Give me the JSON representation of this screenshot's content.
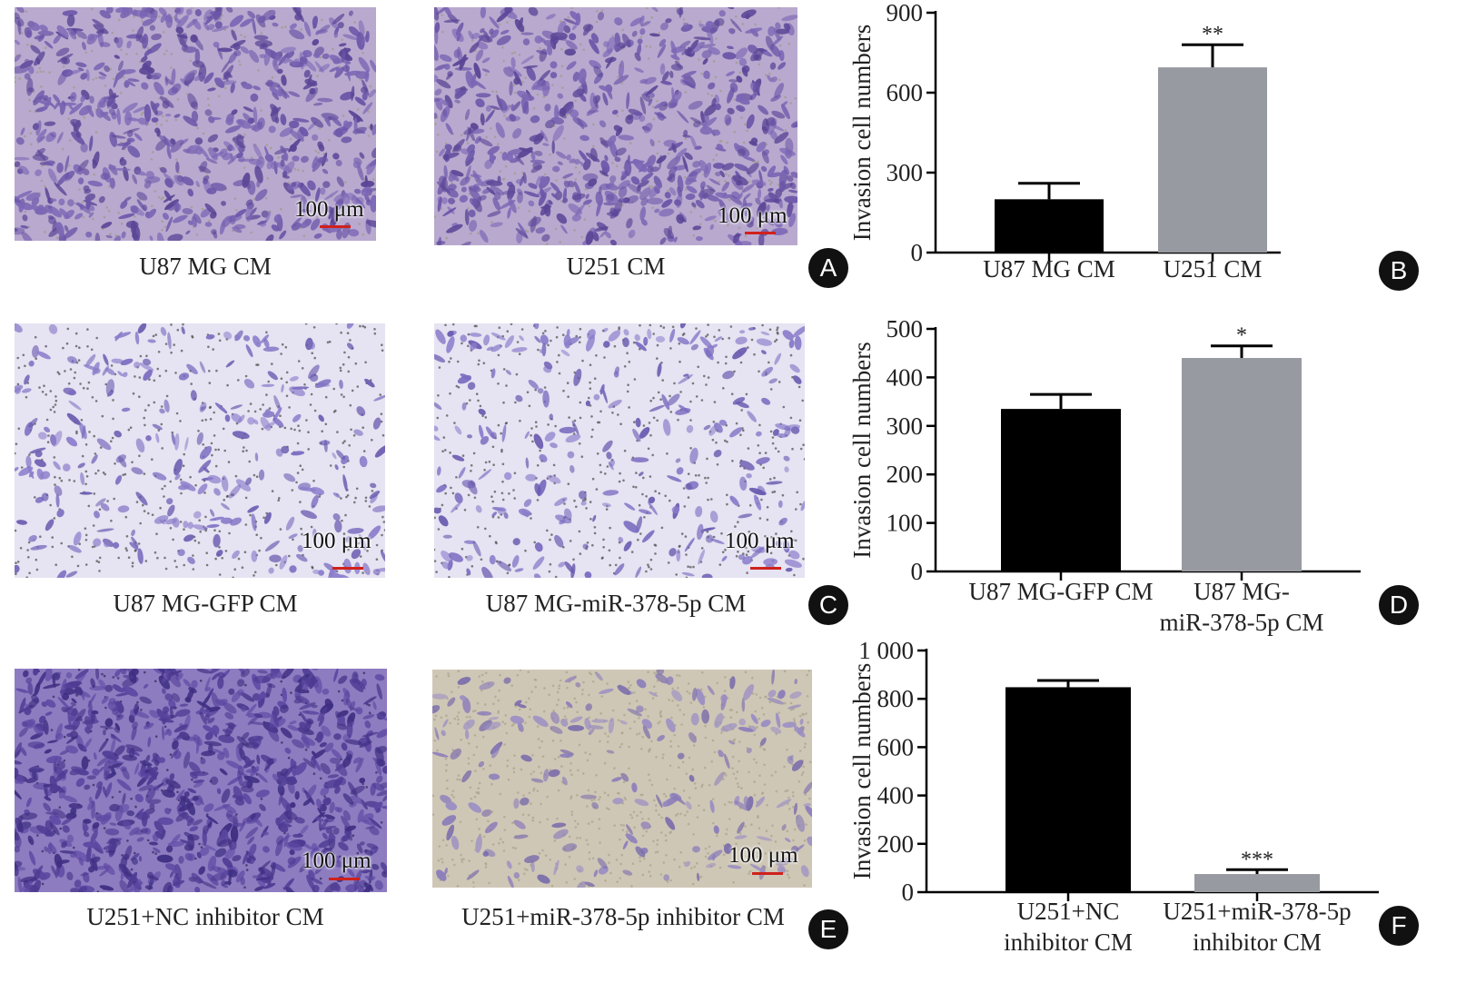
{
  "micrographs": [
    {
      "id": "a1",
      "caption": "U87 MG CM",
      "scale": "100 μm",
      "style": "dense-lilac"
    },
    {
      "id": "a2",
      "caption": "U251 CM",
      "scale": "100 μm",
      "style": "dense-lilac"
    },
    {
      "id": "c1",
      "caption": "U87 MG-GFP CM",
      "scale": "100 μm",
      "style": "sparse-white"
    },
    {
      "id": "c2",
      "caption": "U87 MG-miR-378-5p CM",
      "scale": "100 μm",
      "style": "sparse-white"
    },
    {
      "id": "e1",
      "caption": "U251+NC inhibitor CM",
      "scale": "100 μm",
      "style": "dense-purple"
    },
    {
      "id": "e2",
      "caption": "U251+miR-378-5p inhibitor CM",
      "scale": "100 μm",
      "style": "sparse-beige"
    }
  ],
  "panel_letters": {
    "A": "A",
    "B": "B",
    "C": "C",
    "D": "D",
    "E": "E",
    "F": "F"
  },
  "colors": {
    "bar_black": "#000000",
    "bar_gray": "#979aa0",
    "error": "#000000",
    "scale_bar": "#d0211c"
  },
  "chart_data": [
    {
      "type": "bar",
      "panel": "B",
      "ylabel": "Invasion cell numbers",
      "ylim": [
        0,
        900
      ],
      "yticks": [
        "0",
        "300",
        "600",
        "900"
      ],
      "ytick_values": [
        0,
        300,
        600,
        900
      ],
      "categories": [
        [
          "U87 MG CM"
        ],
        [
          "U251 CM"
        ]
      ],
      "values": [
        200,
        695
      ],
      "errors": [
        60,
        85
      ],
      "significance": [
        "",
        "**"
      ]
    },
    {
      "type": "bar",
      "panel": "D",
      "ylabel": "Invasion cell numbers",
      "ylim": [
        0,
        500
      ],
      "yticks": [
        "0",
        "100",
        "200",
        "300",
        "400",
        "500"
      ],
      "ytick_values": [
        0,
        100,
        200,
        300,
        400,
        500
      ],
      "categories": [
        [
          "U87 MG-GFP CM"
        ],
        [
          "U87 MG-",
          "miR-378-5p CM"
        ]
      ],
      "values": [
        335,
        440
      ],
      "errors": [
        30,
        25
      ],
      "significance": [
        "",
        "*"
      ]
    },
    {
      "type": "bar",
      "panel": "F",
      "ylabel": "Invasion cell numbers",
      "ylim": [
        0,
        1000
      ],
      "yticks": [
        "0",
        "200",
        "400",
        "600",
        "800",
        "1 000"
      ],
      "ytick_values": [
        0,
        200,
        400,
        600,
        800,
        1000
      ],
      "categories": [
        [
          "U251+NC",
          "inhibitor CM"
        ],
        [
          "U251+miR-378-5p",
          "inhibitor CM"
        ]
      ],
      "values": [
        848,
        75
      ],
      "errors": [
        28,
        18
      ],
      "significance": [
        "",
        "***"
      ]
    }
  ]
}
